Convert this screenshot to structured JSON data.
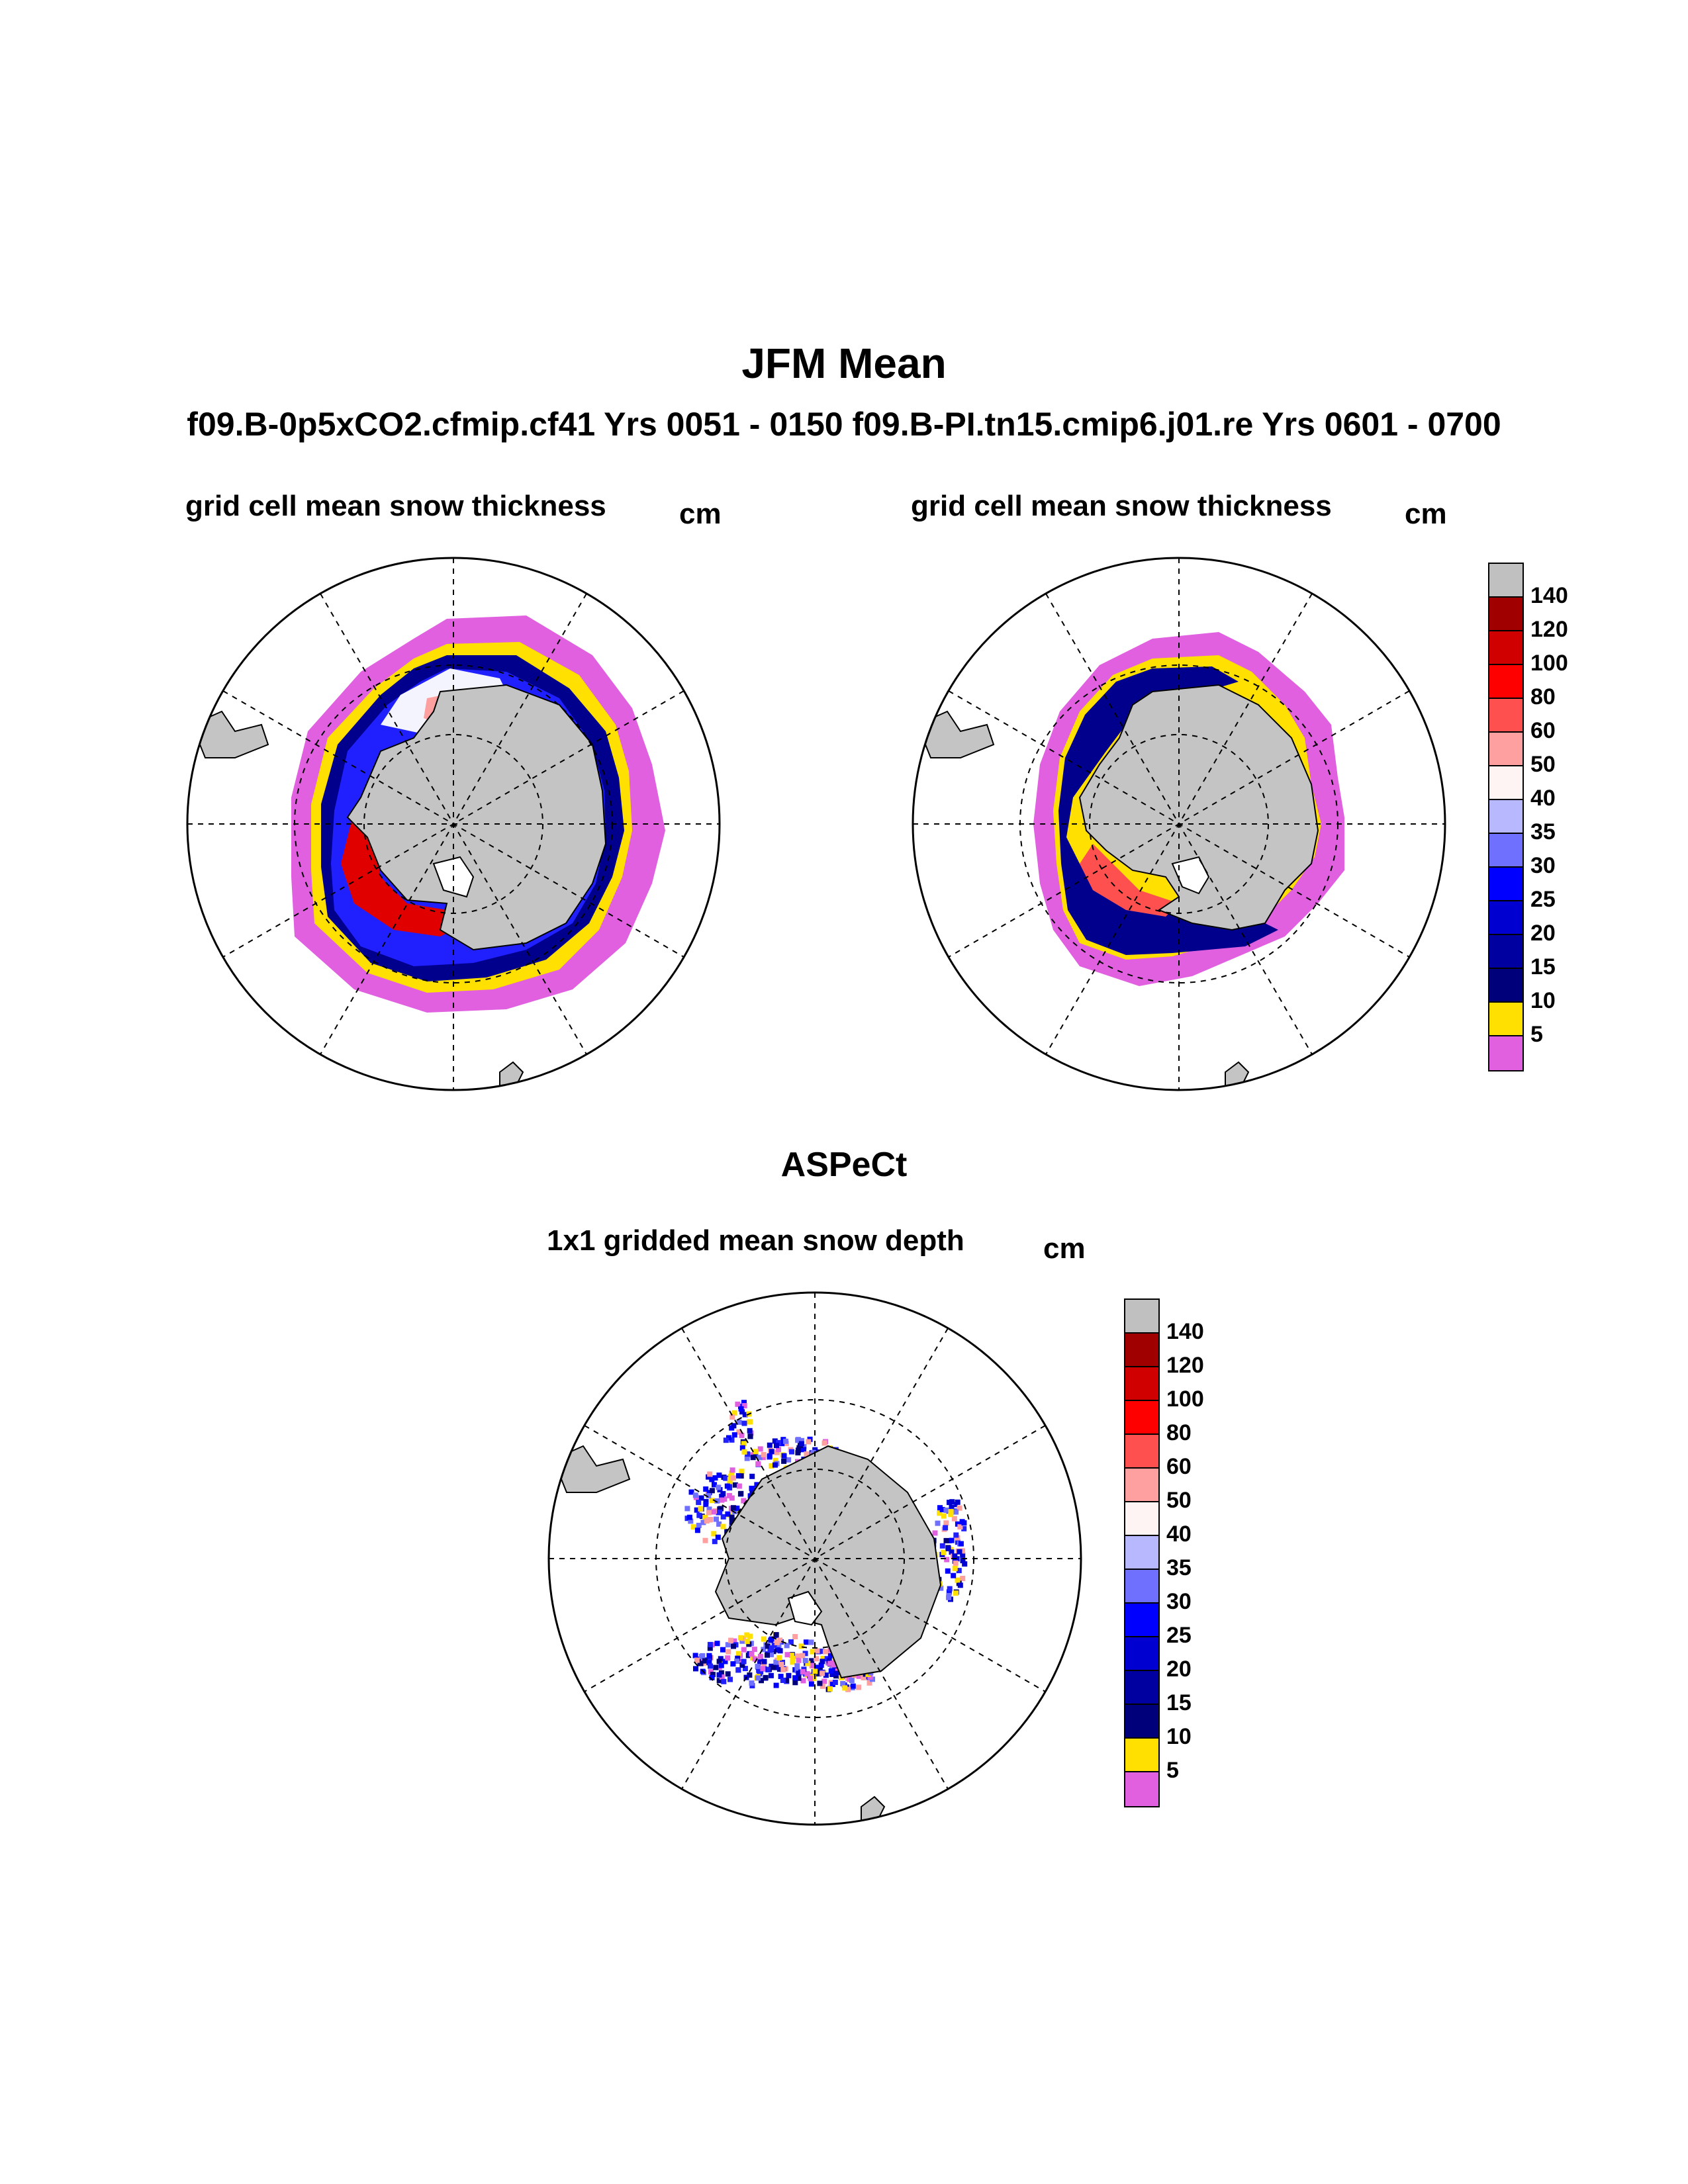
{
  "title": "JFM Mean",
  "subtitle": "f09.B-0p5xCO2.cfmip.cf41  Yrs 0051 - 0150  f09.B-PI.tn15.cmip6.j01.re  Yrs 0601 - 0700",
  "panels": [
    {
      "title": "grid cell mean snow thickness",
      "unit": "cm"
    },
    {
      "title": "grid cell mean snow thickness",
      "unit": "cm"
    }
  ],
  "aspect": {
    "title": "ASPeCt",
    "panel_title": "1x1 gridded mean snow depth",
    "unit": "cm"
  },
  "colorbar": {
    "levels": [
      "140",
      "120",
      "100",
      "80",
      "60",
      "50",
      "40",
      "35",
      "30",
      "25",
      "20",
      "15",
      "10",
      "5"
    ],
    "colors": [
      "#c0c0c0",
      "#a00000",
      "#d00000",
      "#ff0000",
      "#ff5050",
      "#ffa0a0",
      "#fff4f4",
      "#b8b8ff",
      "#7070ff",
      "#0000ff",
      "#0000d0",
      "#0000a0",
      "#00007a",
      "#ffe000",
      "#e060e0"
    ]
  }
}
